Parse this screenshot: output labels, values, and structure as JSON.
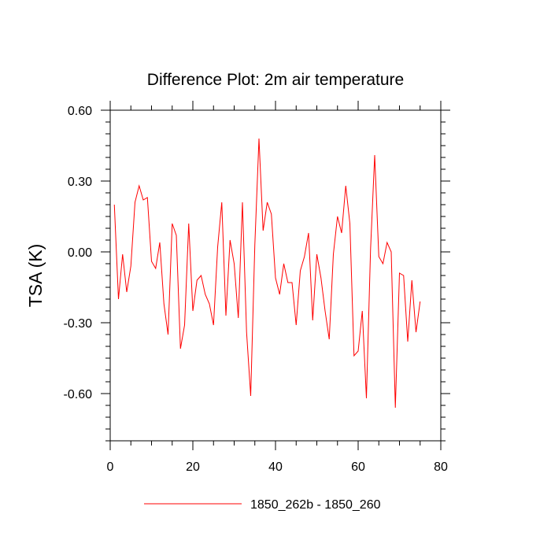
{
  "chart_data": {
    "type": "line",
    "title": "Difference Plot: 2m air temperature",
    "xlabel": "",
    "ylabel": "TSA  (K)",
    "xlim": [
      0,
      80
    ],
    "ylim": [
      -0.8,
      0.6
    ],
    "x_ticks": [
      0,
      20,
      40,
      60,
      80
    ],
    "x_tick_labels": [
      "0",
      "20",
      "40",
      "60",
      "80"
    ],
    "y_ticks": [
      0.6,
      0.3,
      0.0,
      -0.3,
      -0.6
    ],
    "y_tick_labels": [
      "0.60",
      "0.30",
      "0.00",
      "-0.30",
      "-0.60"
    ],
    "x_minor_step": 5,
    "y_minor_step": 0.05,
    "grid": false,
    "legend_position": "bottom-center",
    "series": [
      {
        "name": "1850_262b - 1850_260",
        "color": "#ff0000",
        "x": [
          1,
          2,
          3,
          4,
          5,
          6,
          7,
          8,
          9,
          10,
          11,
          12,
          13,
          14,
          15,
          16,
          17,
          18,
          19,
          20,
          21,
          22,
          23,
          24,
          25,
          26,
          27,
          28,
          29,
          30,
          31,
          32,
          33,
          34,
          35,
          36,
          37,
          38,
          39,
          40,
          41,
          42,
          43,
          44,
          45,
          46,
          47,
          48,
          49,
          50,
          51,
          52,
          53,
          54,
          55,
          56,
          57,
          58,
          59,
          60,
          61,
          62,
          63,
          64,
          65,
          66,
          67,
          68,
          69,
          70,
          71,
          72,
          73,
          74,
          75
        ],
        "values": [
          0.2,
          -0.2,
          -0.01,
          -0.17,
          -0.06,
          0.21,
          0.28,
          0.22,
          0.23,
          -0.04,
          -0.07,
          0.04,
          -0.22,
          -0.35,
          0.12,
          0.07,
          -0.41,
          -0.31,
          0.12,
          -0.25,
          -0.12,
          -0.1,
          -0.18,
          -0.22,
          -0.31,
          0.02,
          0.21,
          -0.27,
          0.05,
          -0.05,
          -0.28,
          0.21,
          -0.34,
          -0.61,
          0.03,
          0.48,
          0.09,
          0.21,
          0.16,
          -0.11,
          -0.18,
          -0.05,
          -0.13,
          -0.13,
          -0.31,
          -0.08,
          -0.02,
          0.08,
          -0.29,
          -0.01,
          -0.11,
          -0.25,
          -0.37,
          -0.01,
          0.15,
          0.08,
          0.28,
          0.12,
          -0.44,
          -0.42,
          -0.25,
          -0.62,
          0.01,
          0.41,
          -0.02,
          -0.05,
          0.04,
          0.0,
          -0.66,
          -0.09,
          -0.1,
          -0.38,
          -0.12,
          -0.34,
          -0.21
        ]
      }
    ]
  }
}
